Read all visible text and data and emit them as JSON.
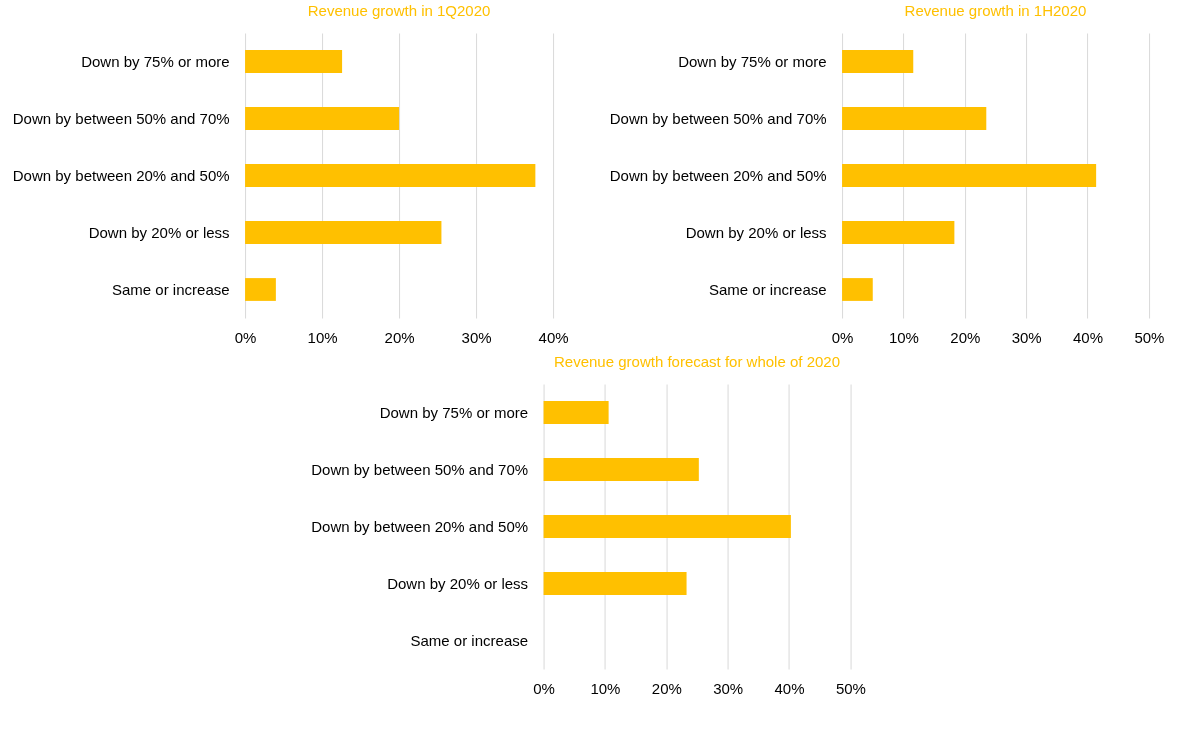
{
  "chart_data": [
    {
      "type": "bar",
      "orientation": "horizontal",
      "title": "Revenue growth in 1Q2020",
      "categories": [
        "Down by 75% or more",
        "Down by between 50% and 70%",
        "Down by between 20% and 50%",
        "Down by 20% or less",
        "Same or increase"
      ],
      "values": [
        12.6,
        20,
        37.7,
        25.5,
        4
      ],
      "color": "#ffc000",
      "xlim": [
        0,
        40
      ],
      "xticks": [
        {
          "value": 0,
          "label": "0%"
        },
        {
          "value": 10,
          "label": "10%"
        },
        {
          "value": 20,
          "label": "20%"
        },
        {
          "value": 30,
          "label": "30%"
        },
        {
          "value": 40,
          "label": "40%"
        }
      ],
      "grid": "x"
    },
    {
      "type": "bar",
      "orientation": "horizontal",
      "title": "Revenue growth in 1H2020",
      "categories": [
        "Down by 75% or more",
        "Down by between 50% and 70%",
        "Down by between 20% and 50%",
        "Down by 20% or less",
        "Same or increase"
      ],
      "values": [
        11.6,
        23.5,
        41.4,
        18.3,
        5
      ],
      "color": "#ffc000",
      "xlim": [
        0,
        50
      ],
      "xticks": [
        {
          "value": 0,
          "label": "0%"
        },
        {
          "value": 10,
          "label": "10%"
        },
        {
          "value": 20,
          "label": "20%"
        },
        {
          "value": 30,
          "label": "30%"
        },
        {
          "value": 40,
          "label": "40%"
        },
        {
          "value": 50,
          "label": "50%"
        }
      ],
      "grid": "x"
    },
    {
      "type": "bar",
      "orientation": "horizontal",
      "title": "Revenue growth forecast for whole of 2020",
      "categories": [
        "Down by 75% or more",
        "Down by between 50% and 70%",
        "Down by between 20% and 50%",
        "Down by 20% or less",
        "Same or increase"
      ],
      "values": [
        10.6,
        25.3,
        40.3,
        23.3,
        0
      ],
      "color": "#ffc000",
      "xlim": [
        0,
        50
      ],
      "xticks": [
        {
          "value": 0,
          "label": "0%"
        },
        {
          "value": 10,
          "label": "10%"
        },
        {
          "value": 20,
          "label": "20%"
        },
        {
          "value": 30,
          "label": "30%"
        },
        {
          "value": 40,
          "label": "40%"
        },
        {
          "value": 50,
          "label": "50%"
        }
      ],
      "grid": "x"
    }
  ]
}
